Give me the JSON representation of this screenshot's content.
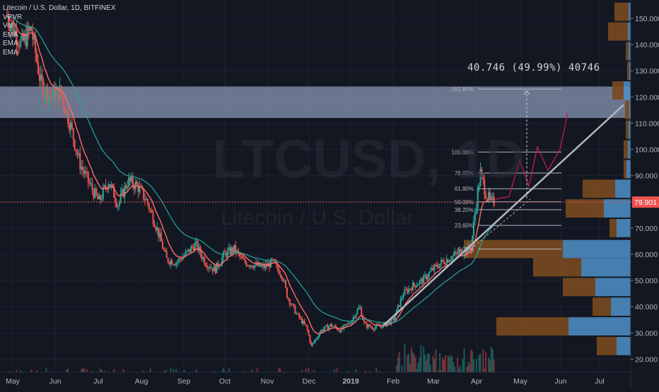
{
  "header": {
    "title": "Litecoin / U.S. Dollar, 1D, BITFINEX",
    "indicators": [
      "VPVR",
      "Vol",
      "EMA",
      "EMA",
      "EMA"
    ]
  },
  "watermark": {
    "symbol": "LTCUSD, 1D",
    "name": "Litecoin / U.S. Dollar"
  },
  "measurement_label": "40.746 (49.99%) 40746",
  "price_label": "79.901",
  "colors": {
    "background": "#131722",
    "grid": "#1e2230",
    "up": "#26a69a",
    "down": "#ef5350",
    "ema1": "#ff6b6b",
    "ema2": "#26a69a",
    "current_price": "#ef5350",
    "zone": "#b2c4e6",
    "vp_up": "#4f91c8",
    "vp_down": "#7a4a1f",
    "trendline": "#b2b5be"
  },
  "chart_data": {
    "type": "candlestick",
    "symbol": "LTCUSD",
    "interval": "1D",
    "exchange": "BITFINEX",
    "x_axis": {
      "labels": [
        "May",
        "Jun",
        "Jul",
        "Aug",
        "Sep",
        "Oct",
        "Nov",
        "Dec",
        "2019",
        "Feb",
        "Mar",
        "Apr",
        "May",
        "Jun",
        "Jul"
      ]
    },
    "y_axis": {
      "ticks": [
        20,
        30,
        40,
        50,
        60,
        70,
        80,
        90,
        100,
        110,
        120,
        130,
        140,
        150
      ],
      "tick_labels": [
        "20.000",
        "30.000",
        "40.000",
        "50.000",
        "60.000",
        "70.000",
        "80.000",
        "90.000",
        "100.000",
        "110.000",
        "120.000",
        "130.000",
        "140.000",
        "150.000"
      ],
      "ylim": [
        15,
        157
      ]
    },
    "close_path": [
      {
        "t": 0,
        "p": 151
      },
      {
        "t": 3,
        "p": 140
      },
      {
        "t": 5,
        "p": 146
      },
      {
        "t": 7,
        "p": 125
      },
      {
        "t": 9,
        "p": 120
      },
      {
        "t": 11,
        "p": 122
      },
      {
        "t": 13,
        "p": 110
      },
      {
        "t": 15,
        "p": 95
      },
      {
        "t": 17,
        "p": 87
      },
      {
        "t": 19,
        "p": 80
      },
      {
        "t": 21,
        "p": 88
      },
      {
        "t": 23,
        "p": 79
      },
      {
        "t": 25,
        "p": 88
      },
      {
        "t": 27,
        "p": 86
      },
      {
        "t": 29,
        "p": 80
      },
      {
        "t": 31,
        "p": 70
      },
      {
        "t": 33,
        "p": 58
      },
      {
        "t": 35,
        "p": 57
      },
      {
        "t": 37,
        "p": 60
      },
      {
        "t": 39,
        "p": 64
      },
      {
        "t": 41,
        "p": 57
      },
      {
        "t": 43,
        "p": 54
      },
      {
        "t": 45,
        "p": 60
      },
      {
        "t": 47,
        "p": 62
      },
      {
        "t": 49,
        "p": 57
      },
      {
        "t": 51,
        "p": 56
      },
      {
        "t": 53,
        "p": 55
      },
      {
        "t": 55,
        "p": 57
      },
      {
        "t": 57,
        "p": 52
      },
      {
        "t": 58,
        "p": 44
      },
      {
        "t": 60,
        "p": 37
      },
      {
        "t": 62,
        "p": 32
      },
      {
        "t": 63,
        "p": 25
      },
      {
        "t": 65,
        "p": 31
      },
      {
        "t": 67,
        "p": 33
      },
      {
        "t": 69,
        "p": 31
      },
      {
        "t": 71,
        "p": 34
      },
      {
        "t": 73,
        "p": 40
      },
      {
        "t": 74,
        "p": 33
      },
      {
        "t": 76,
        "p": 32
      },
      {
        "t": 78,
        "p": 33
      },
      {
        "t": 80,
        "p": 35
      },
      {
        "t": 82,
        "p": 45
      },
      {
        "t": 84,
        "p": 48
      },
      {
        "t": 86,
        "p": 50
      },
      {
        "t": 88,
        "p": 54
      },
      {
        "t": 90,
        "p": 57
      },
      {
        "t": 92,
        "p": 59
      },
      {
        "t": 94,
        "p": 61
      },
      {
        "t": 96,
        "p": 62
      },
      {
        "t": 97,
        "p": 78
      },
      {
        "t": 98,
        "p": 91
      },
      {
        "t": 99,
        "p": 84
      },
      {
        "t": 100,
        "p": 80
      },
      {
        "t": 101,
        "p": 79.9
      }
    ],
    "current_price": 79.901,
    "resistance_zone": [
      112,
      124
    ],
    "fibonacci": {
      "levels": [
        {
          "ratio": "161.80%",
          "price": 123
        },
        {
          "ratio": "100.00%",
          "price": 99
        },
        {
          "ratio": "78.60%",
          "price": 91
        },
        {
          "ratio": "61.80%",
          "price": 85
        },
        {
          "ratio": "50.00%",
          "price": 80
        },
        {
          "ratio": "38.20%",
          "price": 77
        },
        {
          "ratio": "23.60%",
          "price": 71
        },
        {
          "ratio": "0.00%",
          "price": 62
        }
      ]
    },
    "measure": {
      "from": 81.5,
      "to": 122.3,
      "change": "40.746",
      "percent": "49.99%"
    },
    "volume_profile": [
      {
        "price": 25,
        "up": 20,
        "down": 28
      },
      {
        "price": 32.5,
        "up": 88,
        "down": 102
      },
      {
        "price": 40,
        "up": 28,
        "down": 26
      },
      {
        "price": 47.5,
        "up": 50,
        "down": 46
      },
      {
        "price": 55,
        "up": 70,
        "down": 68
      },
      {
        "price": 62,
        "up": 96,
        "down": 140
      },
      {
        "price": 70,
        "up": 20,
        "down": 10
      },
      {
        "price": 77.5,
        "up": 38,
        "down": 54
      },
      {
        "price": 85,
        "up": 22,
        "down": 46
      },
      {
        "price": 92.5,
        "up": 6,
        "down": 4
      },
      {
        "price": 100,
        "up": 4,
        "down": 6
      },
      {
        "price": 107.5,
        "up": 3,
        "down": 4
      },
      {
        "price": 115,
        "up": 2,
        "down": 6
      },
      {
        "price": 122.5,
        "up": 10,
        "down": 16
      },
      {
        "price": 130,
        "up": 2,
        "down": 3
      },
      {
        "price": 137.5,
        "up": 3,
        "down": 4
      },
      {
        "price": 145,
        "up": 4,
        "down": 28
      },
      {
        "price": 152.5,
        "up": 3,
        "down": 20
      }
    ]
  }
}
